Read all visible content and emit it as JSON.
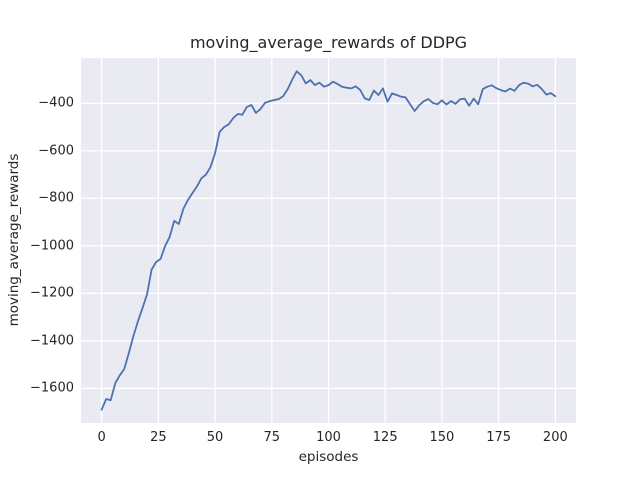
{
  "chart_data": {
    "type": "line",
    "title": "moving_average_rewards of DDPG",
    "xlabel": "episodes",
    "ylabel": "moving_average_rewards",
    "xlim": [
      -9.1,
      209.1
    ],
    "ylim": [
      -1746,
      -209
    ],
    "grid": true,
    "legend": "none",
    "plot_background": "#EAEAF2",
    "grid_color": "#FFFFFF",
    "line_color": "#4C72B0",
    "text_color": "#262626",
    "x_ticks": {
      "values": [
        0,
        25,
        50,
        75,
        100,
        125,
        150,
        175,
        200
      ],
      "labels": [
        "0",
        "25",
        "50",
        "75",
        "100",
        "125",
        "150",
        "175",
        "200"
      ]
    },
    "y_ticks": {
      "values": [
        -400,
        -600,
        -800,
        -1000,
        -1200,
        -1400,
        -1600
      ],
      "labels": [
        "−400",
        "−600",
        "−800",
        "−1000",
        "−1200",
        "−1400",
        "−1600"
      ]
    },
    "series": [
      {
        "name": "moving_average_rewards",
        "points": [
          [
            0,
            -1690
          ],
          [
            2,
            -1645
          ],
          [
            4,
            -1650
          ],
          [
            6,
            -1578
          ],
          [
            8,
            -1545
          ],
          [
            10,
            -1518
          ],
          [
            12,
            -1450
          ],
          [
            14,
            -1380
          ],
          [
            16,
            -1318
          ],
          [
            18,
            -1262
          ],
          [
            20,
            -1205
          ],
          [
            22,
            -1100
          ],
          [
            24,
            -1068
          ],
          [
            26,
            -1055
          ],
          [
            28,
            -1000
          ],
          [
            30,
            -962
          ],
          [
            32,
            -895
          ],
          [
            34,
            -908
          ],
          [
            36,
            -845
          ],
          [
            38,
            -808
          ],
          [
            40,
            -778
          ],
          [
            42,
            -750
          ],
          [
            44,
            -715
          ],
          [
            46,
            -700
          ],
          [
            48,
            -668
          ],
          [
            50,
            -610
          ],
          [
            52,
            -520
          ],
          [
            54,
            -500
          ],
          [
            56,
            -488
          ],
          [
            58,
            -462
          ],
          [
            60,
            -445
          ],
          [
            62,
            -448
          ],
          [
            64,
            -415
          ],
          [
            66,
            -407
          ],
          [
            68,
            -440
          ],
          [
            70,
            -424
          ],
          [
            72,
            -398
          ],
          [
            74,
            -391
          ],
          [
            76,
            -386
          ],
          [
            78,
            -382
          ],
          [
            80,
            -370
          ],
          [
            82,
            -340
          ],
          [
            84,
            -300
          ],
          [
            86,
            -265
          ],
          [
            88,
            -282
          ],
          [
            90,
            -316
          ],
          [
            92,
            -302
          ],
          [
            94,
            -323
          ],
          [
            96,
            -313
          ],
          [
            98,
            -330
          ],
          [
            100,
            -323
          ],
          [
            102,
            -309
          ],
          [
            104,
            -319
          ],
          [
            106,
            -330
          ],
          [
            108,
            -334
          ],
          [
            110,
            -337
          ],
          [
            112,
            -328
          ],
          [
            114,
            -344
          ],
          [
            116,
            -379
          ],
          [
            118,
            -386
          ],
          [
            120,
            -346
          ],
          [
            122,
            -365
          ],
          [
            124,
            -337
          ],
          [
            126,
            -393
          ],
          [
            128,
            -358
          ],
          [
            130,
            -365
          ],
          [
            132,
            -372
          ],
          [
            134,
            -375
          ],
          [
            136,
            -405
          ],
          [
            138,
            -432
          ],
          [
            140,
            -408
          ],
          [
            142,
            -391
          ],
          [
            144,
            -382
          ],
          [
            146,
            -398
          ],
          [
            148,
            -404
          ],
          [
            150,
            -387
          ],
          [
            152,
            -405
          ],
          [
            154,
            -390
          ],
          [
            156,
            -402
          ],
          [
            158,
            -383
          ],
          [
            160,
            -380
          ],
          [
            162,
            -410
          ],
          [
            164,
            -380
          ],
          [
            166,
            -404
          ],
          [
            168,
            -340
          ],
          [
            170,
            -330
          ],
          [
            172,
            -324
          ],
          [
            174,
            -336
          ],
          [
            176,
            -344
          ],
          [
            178,
            -350
          ],
          [
            180,
            -338
          ],
          [
            182,
            -347
          ],
          [
            184,
            -323
          ],
          [
            186,
            -313
          ],
          [
            188,
            -317
          ],
          [
            190,
            -328
          ],
          [
            192,
            -322
          ],
          [
            194,
            -339
          ],
          [
            196,
            -363
          ],
          [
            198,
            -357
          ],
          [
            200,
            -370
          ]
        ]
      }
    ]
  }
}
